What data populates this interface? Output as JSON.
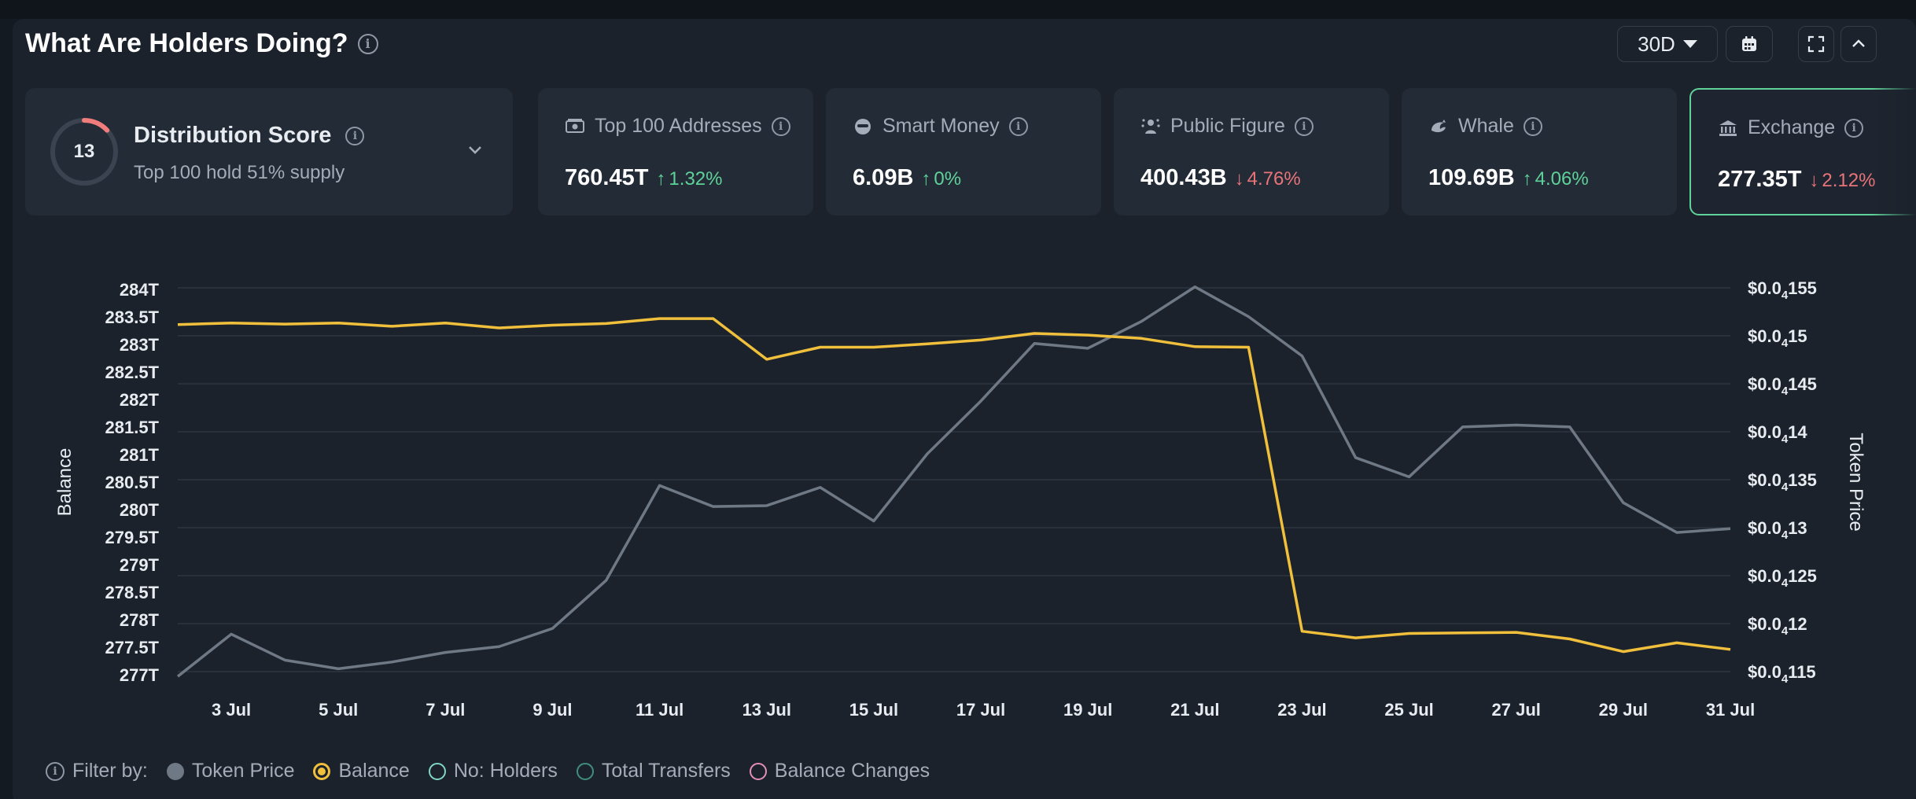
{
  "header": {
    "title": "What Are Holders Doing?",
    "period": "30D"
  },
  "distribution": {
    "score": "13",
    "score_fraction": 0.13,
    "title": "Distribution Score",
    "subtitle": "Top 100 hold 51% supply"
  },
  "cards": [
    {
      "label": "Top 100 Addresses",
      "value": "760.45T",
      "change": "1.32%",
      "direction": "up",
      "icon": "money-icon"
    },
    {
      "label": "Smart Money",
      "value": "6.09B",
      "change": "0%",
      "direction": "up",
      "icon": "smart-money-icon"
    },
    {
      "label": "Public Figure",
      "value": "400.43B",
      "change": "4.76%",
      "direction": "down",
      "icon": "public-figure-icon"
    },
    {
      "label": "Whale",
      "value": "109.69B",
      "change": "4.06%",
      "direction": "up",
      "icon": "whale-icon"
    },
    {
      "label": "Exchange",
      "value": "277.35T",
      "change": "2.12%",
      "direction": "down",
      "icon": "bank-icon"
    }
  ],
  "colors": {
    "balance": "#f0c03c",
    "token_price": "#6f7986",
    "up": "#5fd29a",
    "down": "#e8747a",
    "holders": "#7fd6c2",
    "transfers": "#3f8f7c",
    "balance_changes": "#e58fb8"
  },
  "legend": {
    "filter_label": "Filter by:",
    "items": [
      {
        "label": "Token Price",
        "state": "filled",
        "color": "#6f7986"
      },
      {
        "label": "Balance",
        "state": "selected",
        "color": "#f0c03c"
      },
      {
        "label": "No: Holders",
        "state": "outline",
        "color": "#7fd6c2"
      },
      {
        "label": "Total Transfers",
        "state": "outline",
        "color": "#3f8f7c"
      },
      {
        "label": "Balance Changes",
        "state": "outline",
        "color": "#e58fb8"
      }
    ]
  },
  "chart_data": {
    "type": "line",
    "ylabel": "Balance",
    "y2label": "Token Price",
    "x_ticks": [
      "3 Jul",
      "5 Jul",
      "7 Jul",
      "9 Jul",
      "11 Jul",
      "13 Jul",
      "15 Jul",
      "17 Jul",
      "19 Jul",
      "21 Jul",
      "23 Jul",
      "25 Jul",
      "27 Jul",
      "29 Jul",
      "31 Jul"
    ],
    "y_ticks": [
      "284T",
      "283.5T",
      "283T",
      "282.5T",
      "282T",
      "281.5T",
      "281T",
      "280.5T",
      "280T",
      "279.5T",
      "279T",
      "278.5T",
      "278T",
      "277.5T",
      "277T"
    ],
    "y2_ticks": [
      {
        "main": "$0.0",
        "sub": "4",
        "tail": "155"
      },
      {
        "main": "$0.0",
        "sub": "4",
        "tail": "15"
      },
      {
        "main": "$0.0",
        "sub": "4",
        "tail": "145"
      },
      {
        "main": "$0.0",
        "sub": "4",
        "tail": "14"
      },
      {
        "main": "$0.0",
        "sub": "4",
        "tail": "135"
      },
      {
        "main": "$0.0",
        "sub": "4",
        "tail": "13"
      },
      {
        "main": "$0.0",
        "sub": "4",
        "tail": "125"
      },
      {
        "main": "$0.0",
        "sub": "4",
        "tail": "12"
      },
      {
        "main": "$0.0",
        "sub": "4",
        "tail": "115"
      }
    ],
    "ylim": [
      277,
      284
    ],
    "y2lim": [
      1.15e-05,
      1.55e-05
    ],
    "series": [
      {
        "name": "Balance",
        "axis": "left",
        "values": [
          283.36,
          283.39,
          283.37,
          283.39,
          283.33,
          283.39,
          283.3,
          283.35,
          283.38,
          283.47,
          283.47,
          282.73,
          282.95,
          282.95,
          283.01,
          283.08,
          283.2,
          283.17,
          283.11,
          282.96,
          282.95,
          277.79,
          277.67,
          277.75,
          277.76,
          277.77,
          277.65,
          277.42,
          277.58,
          277.46
        ]
      },
      {
        "name": "Token Price",
        "axis": "right",
        "values": [
          1.145e-05,
          1.189e-05,
          1.162e-05,
          1.153e-05,
          1.16e-05,
          1.17e-05,
          1.176e-05,
          1.195e-05,
          1.245e-05,
          1.344e-05,
          1.322e-05,
          1.323e-05,
          1.342e-05,
          1.307e-05,
          1.377e-05,
          1.432e-05,
          1.492e-05,
          1.487e-05,
          1.515e-05,
          1.551e-05,
          1.52e-05,
          1.479e-05,
          1.373e-05,
          1.353e-05,
          1.405e-05,
          1.407e-05,
          1.405e-05,
          1.326e-05,
          1.295e-05,
          1.299e-05
        ]
      }
    ]
  }
}
